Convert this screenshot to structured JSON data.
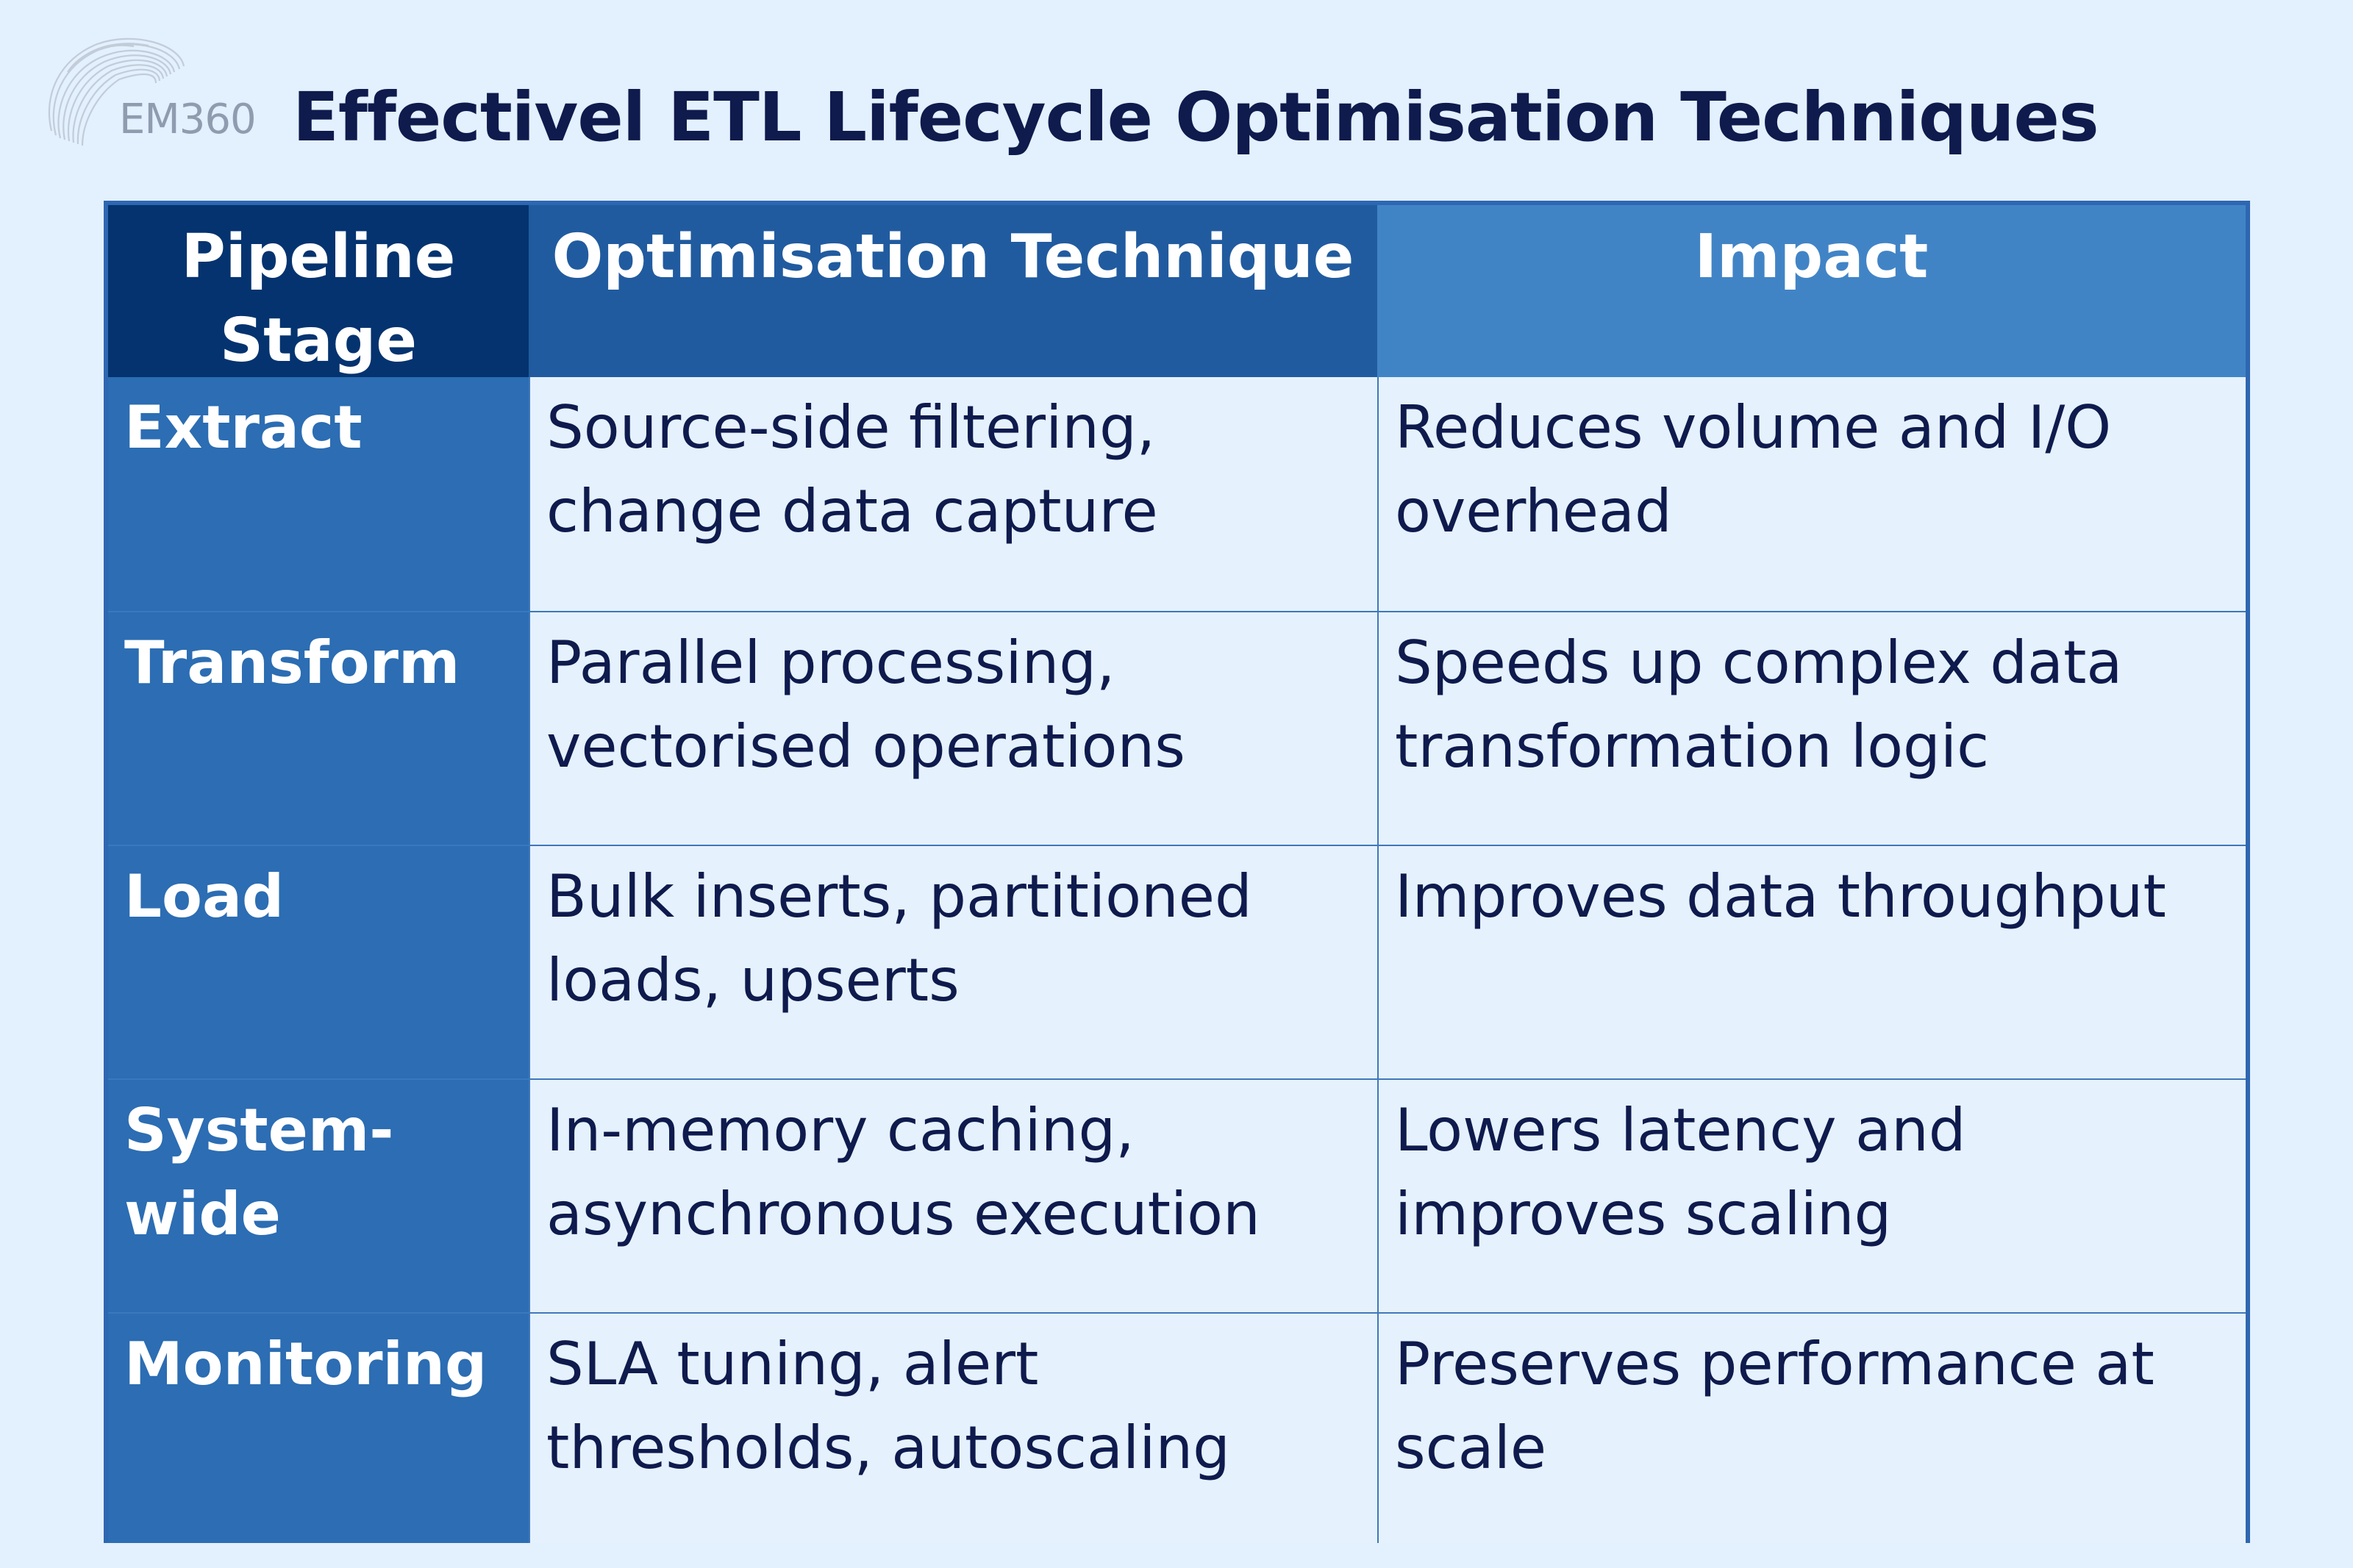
{
  "brand": {
    "logo_text": "EM360",
    "logo_icon": "em360-swirl-logo"
  },
  "title": "Effectivel ETL Lifecycle Optimisation Techniques",
  "table": {
    "headers": [
      "Pipeline Stage",
      "Optimisation Technique",
      "Impact"
    ],
    "rows": [
      {
        "stage": "Extract",
        "technique": "Source-side filtering, change data capture",
        "impact": "Reduces volume and I/O overhead"
      },
      {
        "stage": "Transform",
        "technique": "Parallel processing, vectorised operations",
        "impact": "Speeds up complex data transformation logic"
      },
      {
        "stage": "Load",
        "technique": "Bulk inserts, partitioned loads, upserts",
        "impact": "Improves data throughput"
      },
      {
        "stage": "System-wide",
        "technique": "In-memory caching, asynchronous execution",
        "impact": "Lowers latency and improves scaling"
      },
      {
        "stage": "Monitoring",
        "technique": "SLA tuning, alert thresholds, autoscaling",
        "impact": "Preserves performance at scale"
      }
    ]
  },
  "colors": {
    "background": "#e3f0fd",
    "title": "#0f1a4d",
    "header_stage": "#04336f",
    "header_technique": "#215b9f",
    "header_impact": "#4184c6",
    "stage_column": "#2c6db3",
    "border": "#2e67b1"
  }
}
